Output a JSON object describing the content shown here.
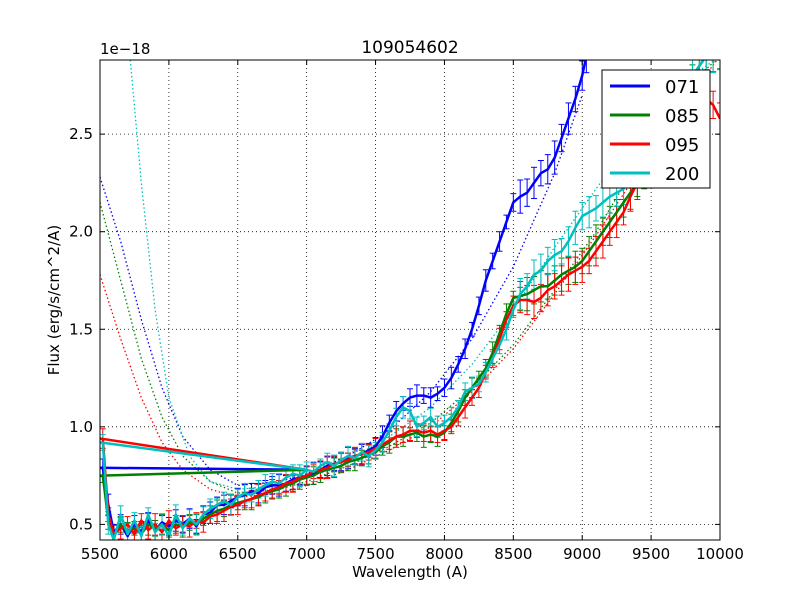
{
  "chart_data": {
    "type": "line",
    "title": "109054602",
    "xlabel": "Wavelength (A)",
    "ylabel": "Flux (erg/s/cm^2/A)",
    "offset_label": "1e−18",
    "xlim": [
      5500,
      10000
    ],
    "ylim": [
      0.42,
      2.88
    ],
    "x_ticks": [
      5500,
      6000,
      6500,
      7000,
      7500,
      8000,
      8500,
      9000,
      9500,
      10000
    ],
    "x_tick_labels": [
      "5500",
      "6000",
      "6500",
      "7000",
      "7500",
      "8000",
      "8500",
      "9000",
      "9500",
      "10000"
    ],
    "y_ticks": [
      0.5,
      1.0,
      1.5,
      2.0,
      2.5
    ],
    "y_tick_labels": [
      "0.5",
      "1.0",
      "1.5",
      "2.0",
      "2.5"
    ],
    "grid": true,
    "legend_position": "top-right",
    "series": [
      {
        "name": "071",
        "color": "#0000ff",
        "x": [
          5500,
          5520,
          5560,
          5600,
          5650,
          5700,
          5750,
          5800,
          5850,
          5900,
          5950,
          6000,
          6050,
          6100,
          6150,
          6200,
          6250,
          6300,
          6350,
          6400,
          6450,
          6500,
          6550,
          6600,
          6650,
          6700,
          6750,
          6800,
          6850,
          6900,
          6950,
          7000,
          7050,
          7100,
          7150,
          7200,
          7250,
          7300,
          7350,
          7400,
          7450,
          7500,
          7550,
          7600,
          7650,
          7700,
          7750,
          7800,
          7850,
          7900,
          7950,
          8000,
          8050,
          8100,
          8150,
          8200,
          8250,
          8300,
          8350,
          8400,
          8450,
          8500,
          8550,
          8600,
          8650,
          8700,
          8750,
          8800,
          8850,
          8900,
          8950,
          9000,
          9030
        ],
        "y": [
          0.79,
          0.79,
          0.6,
          0.46,
          0.5,
          0.44,
          0.5,
          0.46,
          0.52,
          0.47,
          0.51,
          0.49,
          0.52,
          0.5,
          0.53,
          0.49,
          0.55,
          0.56,
          0.6,
          0.6,
          0.62,
          0.64,
          0.65,
          0.67,
          0.66,
          0.69,
          0.7,
          0.7,
          0.71,
          0.73,
          0.74,
          0.75,
          0.76,
          0.78,
          0.8,
          0.81,
          0.82,
          0.84,
          0.85,
          0.86,
          0.88,
          0.9,
          0.95,
          1.02,
          1.08,
          1.12,
          1.15,
          1.16,
          1.16,
          1.15,
          1.17,
          1.2,
          1.25,
          1.32,
          1.4,
          1.5,
          1.62,
          1.75,
          1.85,
          1.95,
          2.05,
          2.15,
          2.18,
          2.2,
          2.25,
          2.3,
          2.32,
          2.38,
          2.48,
          2.58,
          2.68,
          2.8,
          2.9
        ]
      },
      {
        "name": "085",
        "color": "#008000",
        "x": [
          5500,
          5520,
          5560,
          5600,
          5650,
          5700,
          5750,
          5800,
          5850,
          5900,
          5950,
          6000,
          6050,
          6100,
          6150,
          6200,
          6250,
          6300,
          6350,
          6400,
          6450,
          6500,
          6550,
          6600,
          6650,
          6700,
          6750,
          6800,
          6850,
          6900,
          6950,
          7000,
          7050,
          7100,
          7150,
          7200,
          7250,
          7300,
          7350,
          7400,
          7450,
          7500,
          7550,
          7600,
          7650,
          7700,
          7750,
          7800,
          7850,
          7900,
          7950,
          8000,
          8050,
          8100,
          8150,
          8200,
          8250,
          8300,
          8350,
          8400,
          8450,
          8500,
          8550,
          8600,
          8650,
          8700,
          8750,
          8800,
          8850,
          8900,
          8950,
          9000,
          9050,
          9100,
          9150,
          9200,
          9250,
          9300,
          9350,
          9400,
          9450,
          9500,
          9550,
          9600,
          9650,
          9700,
          9750,
          9800,
          9850,
          9900,
          9950,
          10000
        ],
        "y": [
          0.75,
          0.75,
          0.52,
          0.44,
          0.5,
          0.46,
          0.48,
          0.45,
          0.5,
          0.48,
          0.5,
          0.47,
          0.5,
          0.49,
          0.51,
          0.5,
          0.53,
          0.55,
          0.57,
          0.58,
          0.6,
          0.61,
          0.62,
          0.63,
          0.64,
          0.66,
          0.67,
          0.68,
          0.7,
          0.71,
          0.73,
          0.74,
          0.75,
          0.77,
          0.78,
          0.79,
          0.8,
          0.82,
          0.83,
          0.84,
          0.86,
          0.87,
          0.9,
          0.92,
          0.95,
          0.95,
          0.96,
          0.97,
          0.95,
          0.96,
          0.95,
          0.97,
          1.02,
          1.08,
          1.15,
          1.2,
          1.25,
          1.3,
          1.38,
          1.48,
          1.58,
          1.66,
          1.67,
          1.68,
          1.7,
          1.72,
          1.72,
          1.75,
          1.78,
          1.8,
          1.82,
          1.85,
          1.9,
          1.95,
          2.0,
          2.05,
          2.1,
          2.15,
          2.2,
          2.25,
          2.3,
          2.35,
          2.42,
          2.5,
          2.58,
          2.65,
          2.72,
          2.78,
          2.85,
          2.9,
          2.9,
          2.9
        ]
      },
      {
        "name": "095",
        "color": "#ff0000",
        "x": [
          5500,
          5520,
          5560,
          5600,
          5650,
          5700,
          5750,
          5800,
          5850,
          5900,
          5950,
          6000,
          6050,
          6100,
          6150,
          6200,
          6250,
          6300,
          6350,
          6400,
          6450,
          6500,
          6550,
          6600,
          6650,
          6700,
          6750,
          6800,
          6850,
          6900,
          6950,
          7000,
          7050,
          7100,
          7150,
          7200,
          7250,
          7300,
          7350,
          7400,
          7450,
          7500,
          7550,
          7600,
          7650,
          7700,
          7750,
          7800,
          7850,
          7900,
          7950,
          8000,
          8050,
          8100,
          8150,
          8200,
          8250,
          8300,
          8350,
          8400,
          8450,
          8500,
          8550,
          8600,
          8650,
          8700,
          8750,
          8800,
          8850,
          8900,
          8950,
          9000,
          9050,
          9100,
          9150,
          9200,
          9250,
          9300,
          9350,
          9400,
          9450,
          9500,
          9550,
          9600,
          9650,
          9700,
          9750,
          9800,
          9850,
          9900,
          9950,
          10000
        ],
        "y": [
          0.94,
          0.94,
          0.55,
          0.45,
          0.48,
          0.5,
          0.45,
          0.52,
          0.47,
          0.5,
          0.46,
          0.52,
          0.48,
          0.5,
          0.49,
          0.52,
          0.51,
          0.54,
          0.55,
          0.57,
          0.59,
          0.6,
          0.62,
          0.63,
          0.65,
          0.66,
          0.68,
          0.69,
          0.71,
          0.72,
          0.74,
          0.75,
          0.77,
          0.78,
          0.79,
          0.81,
          0.82,
          0.83,
          0.85,
          0.86,
          0.87,
          0.89,
          0.91,
          0.93,
          0.95,
          0.96,
          0.98,
          0.98,
          0.97,
          0.98,
          0.96,
          0.98,
          1.0,
          1.05,
          1.1,
          1.15,
          1.2,
          1.28,
          1.35,
          1.45,
          1.55,
          1.62,
          1.65,
          1.65,
          1.64,
          1.66,
          1.7,
          1.72,
          1.75,
          1.78,
          1.8,
          1.82,
          1.85,
          1.9,
          1.95,
          2.0,
          2.05,
          2.1,
          2.18,
          2.25,
          2.32,
          2.4,
          2.45,
          2.5,
          2.55,
          2.6,
          2.62,
          2.65,
          2.7,
          2.68,
          2.65,
          2.58
        ]
      },
      {
        "name": "200",
        "color": "#00bfbf",
        "x": [
          5500,
          5520,
          5560,
          5600,
          5650,
          5700,
          5750,
          5800,
          5850,
          5900,
          5950,
          6000,
          6050,
          6100,
          6150,
          6200,
          6250,
          6300,
          6350,
          6400,
          6450,
          6500,
          6550,
          6600,
          6650,
          6700,
          6750,
          6800,
          6850,
          6900,
          6950,
          7000,
          7050,
          7100,
          7150,
          7200,
          7250,
          7300,
          7350,
          7400,
          7450,
          7500,
          7550,
          7600,
          7650,
          7700,
          7750,
          7800,
          7850,
          7900,
          7950,
          8000,
          8050,
          8100,
          8150,
          8200,
          8250,
          8300,
          8350,
          8400,
          8450,
          8500,
          8550,
          8600,
          8650,
          8700,
          8750,
          8800,
          8850,
          8900,
          8950,
          9000,
          9050,
          9100,
          9150,
          9200,
          9250,
          9300,
          9350,
          9400,
          9450,
          9500,
          9550,
          9600,
          9650,
          9700,
          9750,
          9800,
          9850,
          9900,
          9950,
          10000
        ],
        "y": [
          0.92,
          0.92,
          0.5,
          0.42,
          0.55,
          0.45,
          0.52,
          0.44,
          0.55,
          0.46,
          0.5,
          0.44,
          0.55,
          0.48,
          0.53,
          0.5,
          0.55,
          0.58,
          0.6,
          0.62,
          0.6,
          0.64,
          0.66,
          0.65,
          0.68,
          0.7,
          0.72,
          0.71,
          0.74,
          0.76,
          0.75,
          0.78,
          0.77,
          0.8,
          0.82,
          0.8,
          0.83,
          0.85,
          0.84,
          0.87,
          0.85,
          0.88,
          0.92,
          0.98,
          1.05,
          1.1,
          1.08,
          1.0,
          1.02,
          1.05,
          1.0,
          1.02,
          1.05,
          1.1,
          1.18,
          1.2,
          1.22,
          1.28,
          1.35,
          1.42,
          1.5,
          1.6,
          1.68,
          1.72,
          1.78,
          1.8,
          1.85,
          1.88,
          1.9,
          1.95,
          2.02,
          2.08,
          2.1,
          2.12,
          2.15,
          2.18,
          2.2,
          2.22,
          2.3,
          2.38,
          2.45,
          2.5,
          2.55,
          2.6,
          2.65,
          2.7,
          2.75,
          2.8,
          2.85,
          2.9,
          2.9,
          2.9
        ]
      }
    ],
    "fit_lines": [
      {
        "name": "071",
        "color": "#0000ff",
        "x": [
          5500,
          5650,
          5800,
          5950,
          6100,
          6300,
          6500,
          6800,
          7000,
          7300,
          7600,
          7900,
          8200,
          8500,
          8800,
          9000
        ],
        "y": [
          2.28,
          1.95,
          1.55,
          1.2,
          0.95,
          0.78,
          0.7,
          0.72,
          0.76,
          0.85,
          0.98,
          1.18,
          1.45,
          1.82,
          2.3,
          2.7
        ]
      },
      {
        "name": "085",
        "color": "#008000",
        "x": [
          5500,
          5650,
          5800,
          5950,
          6100,
          6300,
          6500,
          6800,
          7000,
          7300,
          7600,
          7900,
          8200,
          8500,
          8800,
          9100,
          9400,
          9700,
          10000
        ],
        "y": [
          2.15,
          1.75,
          1.35,
          1.05,
          0.85,
          0.72,
          0.66,
          0.68,
          0.72,
          0.8,
          0.9,
          1.02,
          1.2,
          1.42,
          1.7,
          2.0,
          2.35,
          2.7,
          2.9
        ]
      },
      {
        "name": "095",
        "color": "#ff0000",
        "x": [
          5500,
          5650,
          5800,
          5950,
          6100,
          6300,
          6500,
          6800,
          7000,
          7300,
          7600,
          7900,
          8200,
          8500,
          8800,
          9100,
          9400,
          9700,
          10000
        ],
        "y": [
          1.78,
          1.45,
          1.15,
          0.92,
          0.78,
          0.68,
          0.64,
          0.66,
          0.7,
          0.78,
          0.88,
          1.0,
          1.18,
          1.4,
          1.68,
          1.98,
          2.3,
          2.62,
          2.9
        ]
      },
      {
        "name": "200",
        "color": "#00bfbf",
        "x": [
          5720,
          5800,
          5900,
          6000,
          6150,
          6300,
          6500,
          6800,
          7000,
          7300,
          7600,
          7900,
          8200,
          8500,
          8800,
          9100,
          9400,
          9700,
          10000
        ],
        "y": [
          2.88,
          2.25,
          1.6,
          1.15,
          0.85,
          0.72,
          0.68,
          0.7,
          0.75,
          0.83,
          0.95,
          1.1,
          1.32,
          1.6,
          1.92,
          2.22,
          2.5,
          2.75,
          2.9
        ]
      }
    ]
  }
}
